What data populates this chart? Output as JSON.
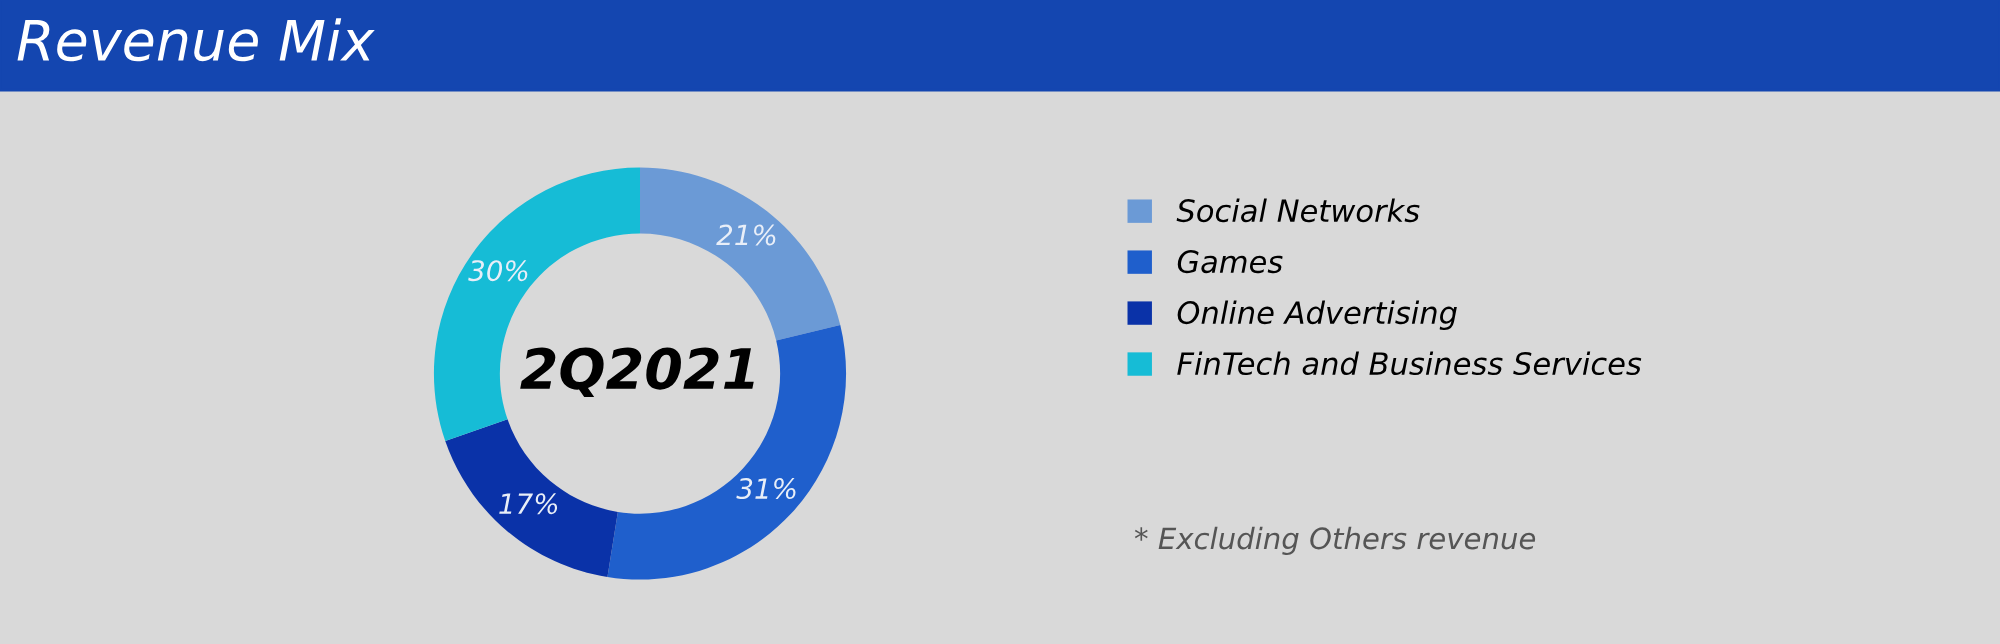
{
  "chart_data": {
    "type": "donut",
    "title": "Revenue Mix",
    "categories": [
      "Social Networks",
      "Games",
      "Online Advertising",
      "FinTech and Business Services"
    ],
    "values": [
      21,
      31,
      17,
      30
    ],
    "value_labels": [
      "21%",
      "31%",
      "17%",
      "30%"
    ],
    "colors": [
      "#6b9ad6",
      "#1f5fcc",
      "#0a32a8",
      "#16bcd6"
    ],
    "legend": "right",
    "annotations": [
      "2Q2021",
      "* Excluding Others revenue"
    ]
  }
}
